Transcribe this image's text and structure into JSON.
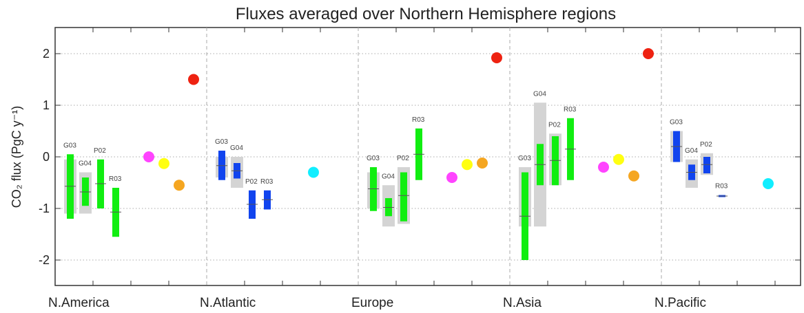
{
  "chart_data": {
    "type": "scatter",
    "title": "Fluxes averaged over Northern Hemisphere regions",
    "ylabel": "CO₂ flux (PgC y⁻¹)",
    "ylim": [
      -2.5,
      2.5
    ],
    "yticks": [
      -2,
      -1,
      0,
      1,
      2
    ],
    "grid": true,
    "regions": [
      "N.America",
      "N.Atlantic",
      "Europe",
      "N.Asia",
      "N.Pacific"
    ],
    "colors": {
      "green": "#11ee11",
      "blue": "#1144ee",
      "gray": "#d4d4d4",
      "red": "#ee2211",
      "magenta": "#ff44ff",
      "yellow": "#ffff11",
      "orange": "#f5a621",
      "cyan": "#11eeff",
      "grid": "#aaaaaa"
    },
    "bars": [
      {
        "region": "N.America",
        "label": "G03",
        "color": "green",
        "min": -1.2,
        "max": 0.05,
        "mean": -0.57,
        "gray_min": -1.1,
        "gray_max": -0.05
      },
      {
        "region": "N.America",
        "label": "G04",
        "color": "green",
        "min": -0.95,
        "max": -0.4,
        "mean": -0.68,
        "gray_min": -1.1,
        "gray_max": -0.3
      },
      {
        "region": "N.America",
        "label": "P02",
        "color": "green",
        "min": -1.0,
        "max": -0.05,
        "mean": -0.52,
        "gray_min": null,
        "gray_max": null
      },
      {
        "region": "N.America",
        "label": "R03",
        "color": "green",
        "min": -1.55,
        "max": -0.6,
        "mean": -1.07,
        "gray_min": null,
        "gray_max": null
      },
      {
        "region": "N.Atlantic",
        "label": "G03",
        "color": "blue",
        "min": -0.45,
        "max": 0.12,
        "mean": -0.17,
        "gray_min": -0.4,
        "gray_max": 0.0
      },
      {
        "region": "N.Atlantic",
        "label": "G04",
        "color": "blue",
        "min": -0.42,
        "max": -0.12,
        "mean": -0.27,
        "gray_min": -0.6,
        "gray_max": 0.0
      },
      {
        "region": "N.Atlantic",
        "label": "P02",
        "color": "blue",
        "min": -1.2,
        "max": -0.65,
        "mean": -0.92,
        "gray_min": null,
        "gray_max": null
      },
      {
        "region": "N.Atlantic",
        "label": "R03",
        "color": "blue",
        "min": -1.02,
        "max": -0.65,
        "mean": -0.83,
        "gray_min": null,
        "gray_max": null
      },
      {
        "region": "Europe",
        "label": "G03",
        "color": "green",
        "min": -1.05,
        "max": -0.2,
        "mean": -0.62,
        "gray_min": -1.0,
        "gray_max": -0.3
      },
      {
        "region": "Europe",
        "label": "G04",
        "color": "green",
        "min": -1.15,
        "max": -0.8,
        "mean": -0.98,
        "gray_min": -1.35,
        "gray_max": -0.55
      },
      {
        "region": "Europe",
        "label": "P02",
        "color": "green",
        "min": -1.25,
        "max": -0.3,
        "mean": -0.75,
        "gray_min": -1.3,
        "gray_max": -0.2
      },
      {
        "region": "Europe",
        "label": "R03",
        "color": "green",
        "min": -0.45,
        "max": 0.55,
        "mean": 0.05,
        "gray_min": null,
        "gray_max": null
      },
      {
        "region": "N.Asia",
        "label": "G03",
        "color": "green",
        "min": -2.0,
        "max": -0.3,
        "mean": -1.15,
        "gray_min": -1.35,
        "gray_max": -0.2
      },
      {
        "region": "N.Asia",
        "label": "G04",
        "color": "green",
        "min": -0.55,
        "max": 0.25,
        "mean": -0.15,
        "gray_min": -1.35,
        "gray_max": 1.05
      },
      {
        "region": "N.Asia",
        "label": "P02",
        "color": "green",
        "min": -0.55,
        "max": 0.4,
        "mean": -0.07,
        "gray_min": -0.55,
        "gray_max": 0.45
      },
      {
        "region": "N.Asia",
        "label": "R03",
        "color": "green",
        "min": -0.45,
        "max": 0.75,
        "mean": 0.15,
        "gray_min": null,
        "gray_max": null
      },
      {
        "region": "N.Pacific",
        "label": "G03",
        "color": "blue",
        "min": -0.1,
        "max": 0.5,
        "mean": 0.2,
        "gray_min": -0.1,
        "gray_max": 0.5
      },
      {
        "region": "N.Pacific",
        "label": "G04",
        "color": "blue",
        "min": -0.45,
        "max": -0.15,
        "mean": -0.3,
        "gray_min": -0.6,
        "gray_max": -0.05
      },
      {
        "region": "N.Pacific",
        "label": "P02",
        "color": "blue",
        "min": -0.32,
        "max": 0.0,
        "mean": -0.15,
        "gray_min": -0.35,
        "gray_max": 0.07
      },
      {
        "region": "N.Pacific",
        "label": "R03",
        "color": "blue",
        "min": -0.78,
        "max": -0.74,
        "mean": -0.76,
        "gray_min": null,
        "gray_max": null
      }
    ],
    "points": [
      {
        "region": "N.America",
        "color": "magenta",
        "y": 0.0
      },
      {
        "region": "N.America",
        "color": "yellow",
        "y": -0.13
      },
      {
        "region": "N.America",
        "color": "orange",
        "y": -0.55
      },
      {
        "region": "N.America",
        "color": "red",
        "y": 1.5
      },
      {
        "region": "N.Atlantic",
        "color": "cyan",
        "y": -0.3
      },
      {
        "region": "Europe",
        "color": "magenta",
        "y": -0.4
      },
      {
        "region": "Europe",
        "color": "yellow",
        "y": -0.15
      },
      {
        "region": "Europe",
        "color": "orange",
        "y": -0.12
      },
      {
        "region": "Europe",
        "color": "red",
        "y": 1.92
      },
      {
        "region": "N.Asia",
        "color": "magenta",
        "y": -0.2
      },
      {
        "region": "N.Asia",
        "color": "yellow",
        "y": -0.05
      },
      {
        "region": "N.Asia",
        "color": "orange",
        "y": -0.37
      },
      {
        "region": "N.Asia",
        "color": "red",
        "y": 2.0
      },
      {
        "region": "N.Pacific",
        "color": "cyan",
        "y": -0.52
      }
    ]
  }
}
